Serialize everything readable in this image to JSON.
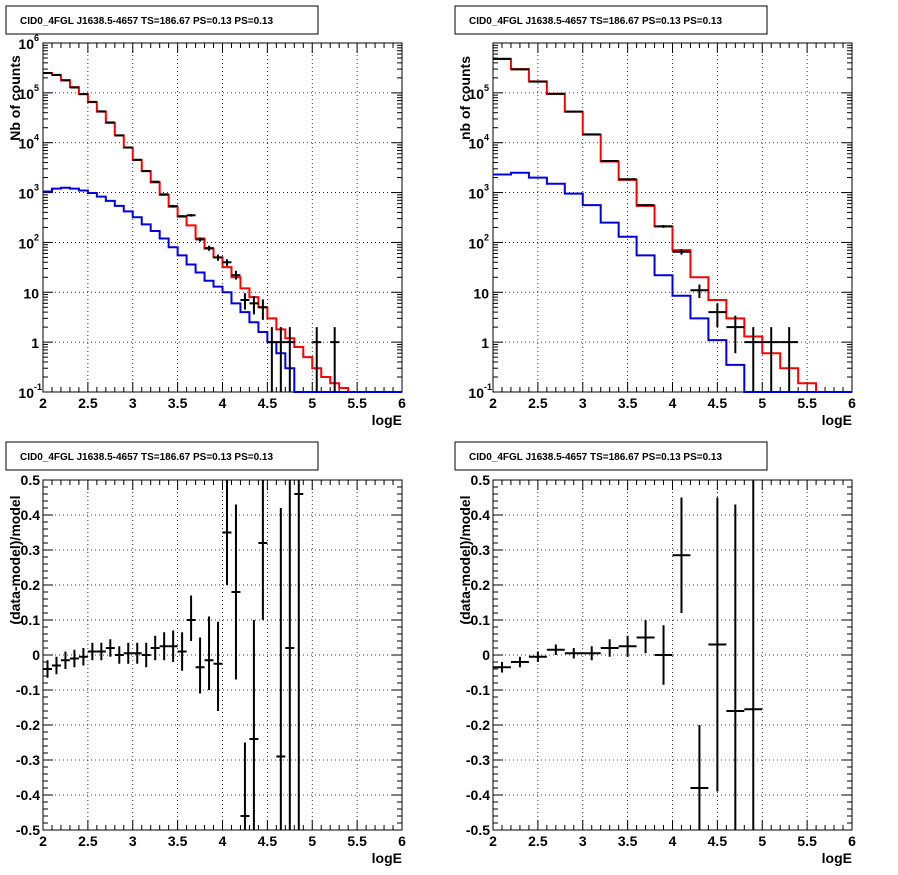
{
  "chart_data": [
    {
      "type": "line",
      "title": "CID0_4FGL J1638.5-4657 TS=186.67 PS=0.13 PS=0.13",
      "xlabel": "logE",
      "ylabel": "Nb of counts",
      "yscale": "log",
      "xlim": [
        2,
        6
      ],
      "ylim": [
        0.1,
        1000000
      ],
      "xticks": [
        "2",
        "2.5",
        "3",
        "3.5",
        "4",
        "4.5",
        "5",
        "5.5",
        "6"
      ],
      "yticks": [
        {
          "v": 0.1,
          "mant": "10",
          "exp": "-1"
        },
        {
          "v": 1,
          "mant": "1",
          "exp": ""
        },
        {
          "v": 10,
          "mant": "10",
          "exp": ""
        },
        {
          "v": 100,
          "mant": "10",
          "exp": "2"
        },
        {
          "v": 1000,
          "mant": "10",
          "exp": "3"
        },
        {
          "v": 10000,
          "mant": "10",
          "exp": "4"
        },
        {
          "v": 100000,
          "mant": "10",
          "exp": "5"
        },
        {
          "v": 1000000,
          "mant": "10",
          "exp": "6"
        }
      ],
      "grid": true,
      "bin_edges": [
        2.0,
        2.1,
        2.2,
        2.3,
        2.4,
        2.5,
        2.6,
        2.7,
        2.8,
        2.9,
        3.0,
        3.1,
        3.2,
        3.3,
        3.4,
        3.5,
        3.6,
        3.7,
        3.8,
        3.9,
        4.0,
        4.1,
        4.2,
        4.3,
        4.4,
        4.5,
        4.6,
        4.7,
        4.8,
        4.9,
        5.0,
        5.1,
        5.2,
        5.3,
        5.4,
        5.5,
        5.6,
        5.7,
        5.8,
        5.9,
        6.0
      ],
      "series": [
        {
          "color": "#ff0000",
          "values": [
            250000,
            230000,
            180000,
            130000,
            95000,
            65000,
            42000,
            25000,
            14000,
            8000,
            4500,
            2700,
            1600,
            900,
            520,
            330,
            220,
            120,
            75,
            50,
            32,
            20,
            12,
            8,
            5,
            3,
            1.8,
            1.2,
            0.8,
            0.5,
            0.3,
            0.2,
            0.15,
            0.12,
            0.1,
            0.1,
            0.1,
            0.1,
            0.1,
            0.1
          ]
        },
        {
          "color": "#0000dd",
          "values": [
            1050,
            1200,
            1250,
            1200,
            1100,
            980,
            830,
            680,
            540,
            420,
            320,
            230,
            170,
            120,
            80,
            55,
            36,
            25,
            17,
            13,
            10,
            6,
            4,
            2.5,
            1.6,
            1.0,
            0.6,
            0.3,
            0.1,
            0.1,
            0.1,
            0.1,
            0.1,
            0.1,
            0.1,
            0.1,
            0.1,
            0.1,
            0.1,
            0.1
          ]
        }
      ],
      "points": [
        {
          "x": 2.05,
          "y": 250000,
          "ylo": 245000,
          "yhi": 255000
        },
        {
          "x": 2.15,
          "y": 228000,
          "ylo": 224000,
          "yhi": 232000
        },
        {
          "x": 2.25,
          "y": 178000,
          "ylo": 174000,
          "yhi": 182000
        },
        {
          "x": 2.35,
          "y": 128000,
          "ylo": 125000,
          "yhi": 131000
        },
        {
          "x": 2.45,
          "y": 94000,
          "ylo": 92000,
          "yhi": 96000
        },
        {
          "x": 2.55,
          "y": 66000,
          "ylo": 64500,
          "yhi": 67500
        },
        {
          "x": 2.65,
          "y": 42500,
          "ylo": 41500,
          "yhi": 43500
        },
        {
          "x": 2.75,
          "y": 25500,
          "ylo": 25000,
          "yhi": 26000
        },
        {
          "x": 2.85,
          "y": 14000,
          "ylo": 13700,
          "yhi": 14300
        },
        {
          "x": 2.95,
          "y": 8000,
          "ylo": 7800,
          "yhi": 8200
        },
        {
          "x": 3.05,
          "y": 4550,
          "ylo": 4400,
          "yhi": 4700
        },
        {
          "x": 3.15,
          "y": 2700,
          "ylo": 2600,
          "yhi": 2800
        },
        {
          "x": 3.25,
          "y": 1650,
          "ylo": 1580,
          "yhi": 1720
        },
        {
          "x": 3.35,
          "y": 920,
          "ylo": 880,
          "yhi": 960
        },
        {
          "x": 3.45,
          "y": 535,
          "ylo": 510,
          "yhi": 560
        },
        {
          "x": 3.55,
          "y": 335,
          "ylo": 318,
          "yhi": 352
        },
        {
          "x": 3.65,
          "y": 350,
          "ylo": 330,
          "yhi": 370
        },
        {
          "x": 3.75,
          "y": 115,
          "ylo": 104,
          "yhi": 126
        },
        {
          "x": 3.85,
          "y": 77,
          "ylo": 68,
          "yhi": 86
        },
        {
          "x": 3.95,
          "y": 50,
          "ylo": 43,
          "yhi": 57
        },
        {
          "x": 4.05,
          "y": 40,
          "ylo": 34,
          "yhi": 46
        },
        {
          "x": 4.15,
          "y": 22,
          "ylo": 18,
          "yhi": 27
        },
        {
          "x": 4.25,
          "y": 7,
          "ylo": 4.5,
          "yhi": 9.6
        },
        {
          "x": 4.35,
          "y": 6,
          "ylo": 3.6,
          "yhi": 8.4
        },
        {
          "x": 4.45,
          "y": 5,
          "ylo": 2.8,
          "yhi": 7.2
        },
        {
          "x": 4.55,
          "y": 1,
          "ylo": 0.1,
          "yhi": 2.0
        },
        {
          "x": 4.65,
          "y": 1,
          "ylo": 0.1,
          "yhi": 2.0
        },
        {
          "x": 4.75,
          "y": 1,
          "ylo": 0.1,
          "yhi": 2.0
        },
        {
          "x": 5.05,
          "y": 1,
          "ylo": 0.1,
          "yhi": 2.0
        },
        {
          "x": 5.25,
          "y": 1,
          "ylo": 0.1,
          "yhi": 2.0
        }
      ]
    },
    {
      "type": "line",
      "title": "CID0_4FGL J1638.5-4657 TS=186.67 PS=0.13 PS=0.13",
      "xlabel": "logE",
      "ylabel": "nb of counts",
      "yscale": "log",
      "xlim": [
        2,
        6
      ],
      "ylim": [
        0.1,
        1000000
      ],
      "xticks": [
        "2",
        "2.5",
        "3",
        "3.5",
        "4",
        "4.5",
        "5",
        "5.5",
        "6"
      ],
      "yticks": [
        {
          "v": 0.1,
          "mant": "10",
          "exp": "-1"
        },
        {
          "v": 1,
          "mant": "1",
          "exp": ""
        },
        {
          "v": 10,
          "mant": "10",
          "exp": ""
        },
        {
          "v": 100,
          "mant": "10",
          "exp": "2"
        },
        {
          "v": 1000,
          "mant": "10",
          "exp": "3"
        },
        {
          "v": 10000,
          "mant": "10",
          "exp": "4"
        },
        {
          "v": 100000,
          "mant": "10",
          "exp": "5"
        }
      ],
      "grid": true,
      "bin_edges": [
        2.0,
        2.2,
        2.4,
        2.6,
        2.8,
        3.0,
        3.2,
        3.4,
        3.6,
        3.8,
        4.0,
        4.2,
        4.4,
        4.6,
        4.8,
        5.0,
        5.2,
        5.4,
        5.6,
        5.8,
        6.0
      ],
      "series": [
        {
          "color": "#ff0000",
          "values": [
            480000,
            300000,
            170000,
            95000,
            42000,
            14500,
            4200,
            1800,
            540,
            210,
            70,
            20,
            7,
            3,
            1.3,
            0.6,
            0.3,
            0.15,
            0.1,
            0.1
          ]
        },
        {
          "color": "#0000dd",
          "values": [
            2300,
            2500,
            2000,
            1500,
            950,
            560,
            250,
            130,
            55,
            22,
            8.5,
            3,
            1.1,
            0.35,
            0.1,
            0.1,
            0.1,
            0.1,
            0.1,
            0.1
          ]
        }
      ],
      "points": [
        {
          "x": 2.1,
          "y": 480000,
          "ylo": 475000,
          "yhi": 485000
        },
        {
          "x": 2.3,
          "y": 295000,
          "ylo": 291000,
          "yhi": 299000
        },
        {
          "x": 2.5,
          "y": 168000,
          "ylo": 165000,
          "yhi": 171000
        },
        {
          "x": 2.7,
          "y": 96000,
          "ylo": 94000,
          "yhi": 98000
        },
        {
          "x": 2.9,
          "y": 42000,
          "ylo": 41000,
          "yhi": 43000
        },
        {
          "x": 3.1,
          "y": 14700,
          "ylo": 14400,
          "yhi": 15000
        },
        {
          "x": 3.3,
          "y": 4300,
          "ylo": 4150,
          "yhi": 4450
        },
        {
          "x": 3.5,
          "y": 1850,
          "ylo": 1770,
          "yhi": 1930
        },
        {
          "x": 3.7,
          "y": 560,
          "ylo": 535,
          "yhi": 585
        },
        {
          "x": 3.9,
          "y": 210,
          "ylo": 196,
          "yhi": 224
        },
        {
          "x": 4.1,
          "y": 65,
          "ylo": 57,
          "yhi": 73
        },
        {
          "x": 4.3,
          "y": 11,
          "ylo": 7.7,
          "yhi": 14.3
        },
        {
          "x": 4.5,
          "y": 4,
          "ylo": 2,
          "yhi": 6
        },
        {
          "x": 4.7,
          "y": 2,
          "ylo": 0.6,
          "yhi": 3.4
        },
        {
          "x": 4.9,
          "y": 1,
          "ylo": 0.1,
          "yhi": 2.0
        },
        {
          "x": 5.1,
          "y": 1,
          "ylo": 0.1,
          "yhi": 2.0
        },
        {
          "x": 5.3,
          "y": 1,
          "ylo": 0.1,
          "yhi": 2.0
        }
      ]
    },
    {
      "type": "scatter",
      "title": "CID0_4FGL J1638.5-4657 TS=186.67 PS=0.13 PS=0.13",
      "xlabel": "logE",
      "ylabel": "(data-model)/model",
      "xlim": [
        2,
        6
      ],
      "ylim": [
        -0.5,
        0.5
      ],
      "xticks": [
        "2",
        "2.5",
        "3",
        "3.5",
        "4",
        "4.5",
        "5",
        "5.5",
        "6"
      ],
      "yticks": [
        "-0.5",
        "-0.4",
        "-0.3",
        "-0.2",
        "-0.1",
        "0",
        "0.1",
        "0.2",
        "0.3",
        "0.4",
        "0.5"
      ],
      "grid": true,
      "xerr": 0.05,
      "points": [
        {
          "x": 2.05,
          "y": -0.04,
          "ylo": -0.065,
          "yhi": -0.015
        },
        {
          "x": 2.15,
          "y": -0.03,
          "ylo": -0.055,
          "yhi": -0.005
        },
        {
          "x": 2.25,
          "y": -0.015,
          "ylo": -0.04,
          "yhi": 0.01
        },
        {
          "x": 2.35,
          "y": -0.01,
          "ylo": -0.035,
          "yhi": 0.015
        },
        {
          "x": 2.45,
          "y": -0.005,
          "ylo": -0.03,
          "yhi": 0.02
        },
        {
          "x": 2.55,
          "y": 0.01,
          "ylo": -0.015,
          "yhi": 0.035
        },
        {
          "x": 2.65,
          "y": 0.01,
          "ylo": -0.015,
          "yhi": 0.035
        },
        {
          "x": 2.75,
          "y": 0.02,
          "ylo": -0.005,
          "yhi": 0.045
        },
        {
          "x": 2.85,
          "y": 0.0,
          "ylo": -0.025,
          "yhi": 0.025
        },
        {
          "x": 2.95,
          "y": 0.005,
          "ylo": -0.025,
          "yhi": 0.035
        },
        {
          "x": 3.05,
          "y": 0.005,
          "ylo": -0.025,
          "yhi": 0.035
        },
        {
          "x": 3.15,
          "y": 0.0,
          "ylo": -0.035,
          "yhi": 0.035
        },
        {
          "x": 3.25,
          "y": 0.02,
          "ylo": -0.015,
          "yhi": 0.055
        },
        {
          "x": 3.35,
          "y": 0.025,
          "ylo": -0.015,
          "yhi": 0.065
        },
        {
          "x": 3.45,
          "y": 0.025,
          "ylo": -0.02,
          "yhi": 0.07
        },
        {
          "x": 3.55,
          "y": 0.01,
          "ylo": -0.045,
          "yhi": 0.065
        },
        {
          "x": 3.65,
          "y": 0.1,
          "ylo": 0.04,
          "yhi": 0.17
        },
        {
          "x": 3.75,
          "y": -0.035,
          "ylo": -0.11,
          "yhi": 0.05
        },
        {
          "x": 3.85,
          "y": -0.015,
          "ylo": -0.1,
          "yhi": 0.11
        },
        {
          "x": 3.95,
          "y": -0.025,
          "ylo": -0.16,
          "yhi": 0.095
        },
        {
          "x": 4.05,
          "y": 0.35,
          "ylo": 0.2,
          "yhi": 0.5
        },
        {
          "x": 4.15,
          "y": 0.18,
          "ylo": -0.07,
          "yhi": 0.43
        },
        {
          "x": 4.25,
          "y": -0.46,
          "ylo": -0.5,
          "yhi": -0.25
        },
        {
          "x": 4.35,
          "y": -0.24,
          "ylo": -0.5,
          "yhi": 0.1
        },
        {
          "x": 4.45,
          "y": 0.32,
          "ylo": 0.1,
          "yhi": 0.5
        },
        {
          "x": 4.65,
          "y": -0.29,
          "ylo": -0.5,
          "yhi": 0.42
        },
        {
          "x": 4.75,
          "y": 0.02,
          "ylo": -0.5,
          "yhi": 0.5
        },
        {
          "x": 4.85,
          "y": 0.46,
          "ylo": -0.5,
          "yhi": 0.5
        }
      ]
    },
    {
      "type": "scatter",
      "title": "CID0_4FGL J1638.5-4657 TS=186.67 PS=0.13 PS=0.13",
      "xlabel": "logE",
      "ylabel": "(data-model)/model",
      "xlim": [
        2,
        6
      ],
      "ylim": [
        -0.5,
        0.5
      ],
      "xticks": [
        "2",
        "2.5",
        "3",
        "3.5",
        "4",
        "4.5",
        "5",
        "5.5",
        "6"
      ],
      "yticks": [
        "-0.5",
        "-0.4",
        "-0.3",
        "-0.2",
        "-0.1",
        "0",
        "0.1",
        "0.2",
        "0.3",
        "0.4",
        "0.5"
      ],
      "grid": true,
      "xerr": 0.1,
      "points": [
        {
          "x": 2.1,
          "y": -0.035,
          "ylo": -0.05,
          "yhi": -0.02
        },
        {
          "x": 2.3,
          "y": -0.02,
          "ylo": -0.035,
          "yhi": -0.005
        },
        {
          "x": 2.5,
          "y": -0.005,
          "ylo": -0.02,
          "yhi": 0.01
        },
        {
          "x": 2.7,
          "y": 0.015,
          "ylo": 0.0,
          "yhi": 0.03
        },
        {
          "x": 2.9,
          "y": 0.005,
          "ylo": -0.01,
          "yhi": 0.02
        },
        {
          "x": 3.1,
          "y": 0.005,
          "ylo": -0.015,
          "yhi": 0.025
        },
        {
          "x": 3.3,
          "y": 0.02,
          "ylo": -0.005,
          "yhi": 0.045
        },
        {
          "x": 3.5,
          "y": 0.025,
          "ylo": -0.005,
          "yhi": 0.055
        },
        {
          "x": 3.7,
          "y": 0.05,
          "ylo": 0.005,
          "yhi": 0.1
        },
        {
          "x": 3.9,
          "y": 0.0,
          "ylo": -0.085,
          "yhi": 0.085
        },
        {
          "x": 4.1,
          "y": 0.285,
          "ylo": 0.12,
          "yhi": 0.45
        },
        {
          "x": 4.3,
          "y": -0.38,
          "ylo": -0.5,
          "yhi": -0.2
        },
        {
          "x": 4.5,
          "y": 0.03,
          "ylo": -0.39,
          "yhi": 0.45
        },
        {
          "x": 4.7,
          "y": -0.16,
          "ylo": -0.5,
          "yhi": 0.43
        },
        {
          "x": 4.9,
          "y": -0.155,
          "ylo": -0.5,
          "yhi": 0.5
        }
      ]
    }
  ]
}
